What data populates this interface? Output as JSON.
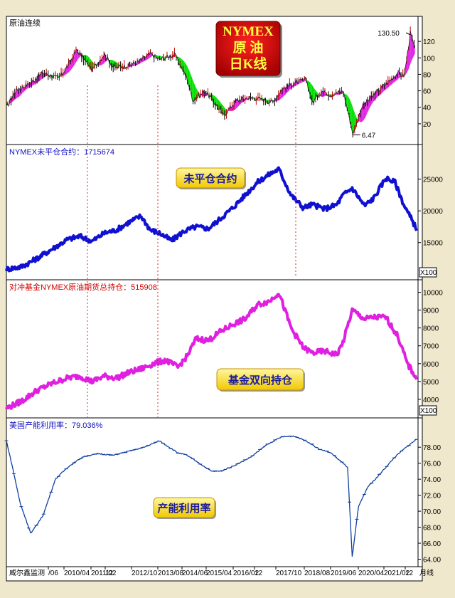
{
  "window": {
    "footer_brand": "威尔鑫监测",
    "footer_unit": "月线"
  },
  "colors": {
    "price_up": "#cc0000",
    "price_down": "#000000",
    "green_fill": "#00e000",
    "magenta_fill": "#e020e0",
    "oi": "#1010d0",
    "hedge": "#e020e0",
    "cap": "#1040a0",
    "vline": "#dd2222"
  },
  "x_axis": {
    "ticks": [
      "/06",
      "2010/04",
      "2011/02",
      "12",
      "2012/10",
      "2013/08",
      "2014/06",
      "2015/04",
      "2016/02",
      "12",
      "2017/10",
      "2018/08",
      "2019/06",
      "2020/04",
      "2021/02",
      "12"
    ]
  },
  "panels": [
    {
      "id": "price",
      "label": "原油连续",
      "badge": [
        "NYMEX",
        "原  油",
        "日K线"
      ],
      "yticks": [
        "120",
        "100",
        "80",
        "60",
        "40",
        "20"
      ],
      "ylim": [
        0,
        140
      ],
      "annotations": {
        "high": "130.50",
        "low": "6.47"
      }
    },
    {
      "id": "oi",
      "label": "NYMEX未平仓合约：1715674",
      "badge": "未平仓合约",
      "yticks": [
        "25000",
        "20000",
        "15000"
      ],
      "ylim": [
        9800,
        28000
      ],
      "unit": "X100"
    },
    {
      "id": "hedge",
      "label": "对冲基金NYMEX原油期货总持仓：515908",
      "badge": "基金双向持仓",
      "yticks": [
        "10000",
        "9000",
        "8000",
        "7000",
        "6000",
        "5000",
        "4000"
      ],
      "ylim": [
        3200,
        10300
      ],
      "unit": "X100"
    },
    {
      "id": "cap",
      "label": "美国产能利用率：79.036%",
      "badge": "产能利用率",
      "yticks": [
        "78.00",
        "76.00",
        "74.00",
        "72.00",
        "70.00",
        "68.00",
        "66.00",
        "64.00"
      ],
      "ylim": [
        63.6,
        80.6
      ]
    }
  ],
  "chart_data": [
    {
      "type": "line",
      "title": "原油连续",
      "ylim": [
        0,
        140
      ],
      "x": [
        2009.0,
        2009.3,
        2009.8,
        2010.2,
        2010.7,
        2011.0,
        2011.3,
        2011.8,
        2012.2,
        2012.5,
        2012.9,
        2013.3,
        2013.7,
        2014.0,
        2014.5,
        2014.9,
        2015.1,
        2015.5,
        2015.9,
        2016.1,
        2016.5,
        2016.9,
        2017.3,
        2017.7,
        2018.0,
        2018.3,
        2018.8,
        2018.99,
        2019.3,
        2019.6,
        2020.0,
        2020.25,
        2020.33,
        2020.6,
        2021.0,
        2021.5,
        2021.8,
        2022.0,
        2022.2,
        2022.35
      ],
      "values": [
        40,
        60,
        70,
        82,
        75,
        90,
        110,
        85,
        105,
        88,
        90,
        95,
        105,
        98,
        104,
        75,
        48,
        60,
        40,
        30,
        48,
        52,
        50,
        46,
        62,
        68,
        74,
        45,
        60,
        55,
        60,
        20,
        6.47,
        40,
        55,
        72,
        82,
        78,
        130.5,
        110
      ]
    },
    {
      "type": "line",
      "title": "NYMEX未平仓合约",
      "ylim": [
        9800,
        28000
      ],
      "x": [
        2009.0,
        2009.5,
        2010.0,
        2010.5,
        2011.0,
        2011.4,
        2011.8,
        2012.2,
        2012.6,
        2013.0,
        2013.4,
        2013.7,
        2014.0,
        2014.4,
        2014.8,
        2015.2,
        2015.6,
        2016.0,
        2016.4,
        2016.8,
        2017.2,
        2017.6,
        2017.9,
        2018.3,
        2018.7,
        2019.0,
        2019.4,
        2019.8,
        2020.0,
        2020.3,
        2020.7,
        2021.0,
        2021.4,
        2021.7,
        2022.0,
        2022.4
      ],
      "values": [
        10800,
        11200,
        12500,
        14000,
        15500,
        16000,
        15200,
        16500,
        17000,
        18200,
        19200,
        17000,
        16500,
        15300,
        16800,
        17500,
        17200,
        18800,
        20500,
        22500,
        24500,
        25800,
        26600,
        22500,
        20500,
        21000,
        20300,
        21000,
        22500,
        23600,
        20800,
        22000,
        25200,
        24500,
        20800,
        17200
      ]
    },
    {
      "type": "line",
      "title": "对冲基金NYMEX原油期货总持仓",
      "ylim": [
        3200,
        10300
      ],
      "x": [
        2009.0,
        2009.5,
        2010.0,
        2010.5,
        2011.0,
        2011.4,
        2011.8,
        2012.2,
        2012.6,
        2013.0,
        2013.4,
        2013.8,
        2014.2,
        2014.6,
        2014.9,
        2015.2,
        2015.6,
        2016.0,
        2016.4,
        2016.8,
        2017.2,
        2017.6,
        2017.9,
        2018.3,
        2018.7,
        2019.0,
        2019.4,
        2019.8,
        2020.0,
        2020.3,
        2020.7,
        2021.0,
        2021.4,
        2021.8,
        2022.1,
        2022.4
      ],
      "values": [
        3500,
        3900,
        4500,
        4900,
        5200,
        5300,
        5000,
        5300,
        5200,
        5500,
        5700,
        6000,
        6200,
        5800,
        6400,
        7400,
        7300,
        7800,
        8200,
        8500,
        9300,
        9500,
        10000,
        8000,
        6900,
        6600,
        6700,
        6500,
        7200,
        9000,
        8500,
        8600,
        8600,
        7500,
        6000,
        5200
      ]
    },
    {
      "type": "line",
      "title": "美国产能利用率",
      "ylim": [
        63.6,
        80.6
      ],
      "x": [
        2009.0,
        2009.2,
        2009.45,
        2009.8,
        2010.2,
        2010.6,
        2011.0,
        2011.5,
        2012.0,
        2012.5,
        2013.0,
        2013.5,
        2014.0,
        2014.6,
        2014.9,
        2015.3,
        2015.7,
        2016.0,
        2016.5,
        2017.0,
        2017.5,
        2018.0,
        2018.4,
        2018.8,
        2019.2,
        2019.6,
        2020.15,
        2020.3,
        2020.5,
        2020.8,
        2021.1,
        2021.4,
        2021.7,
        2022.0,
        2022.4
      ],
      "values": [
        78.8,
        75.5,
        71.0,
        67.2,
        69.5,
        74.0,
        75.5,
        76.8,
        77.2,
        77.0,
        77.5,
        78.0,
        78.8,
        77.3,
        77.0,
        76.0,
        75.0,
        75.0,
        75.8,
        76.8,
        78.3,
        79.3,
        79.4,
        78.8,
        77.8,
        77.3,
        75.5,
        64.2,
        70.5,
        73.0,
        74.2,
        75.5,
        76.8,
        77.8,
        79.0
      ]
    }
  ]
}
